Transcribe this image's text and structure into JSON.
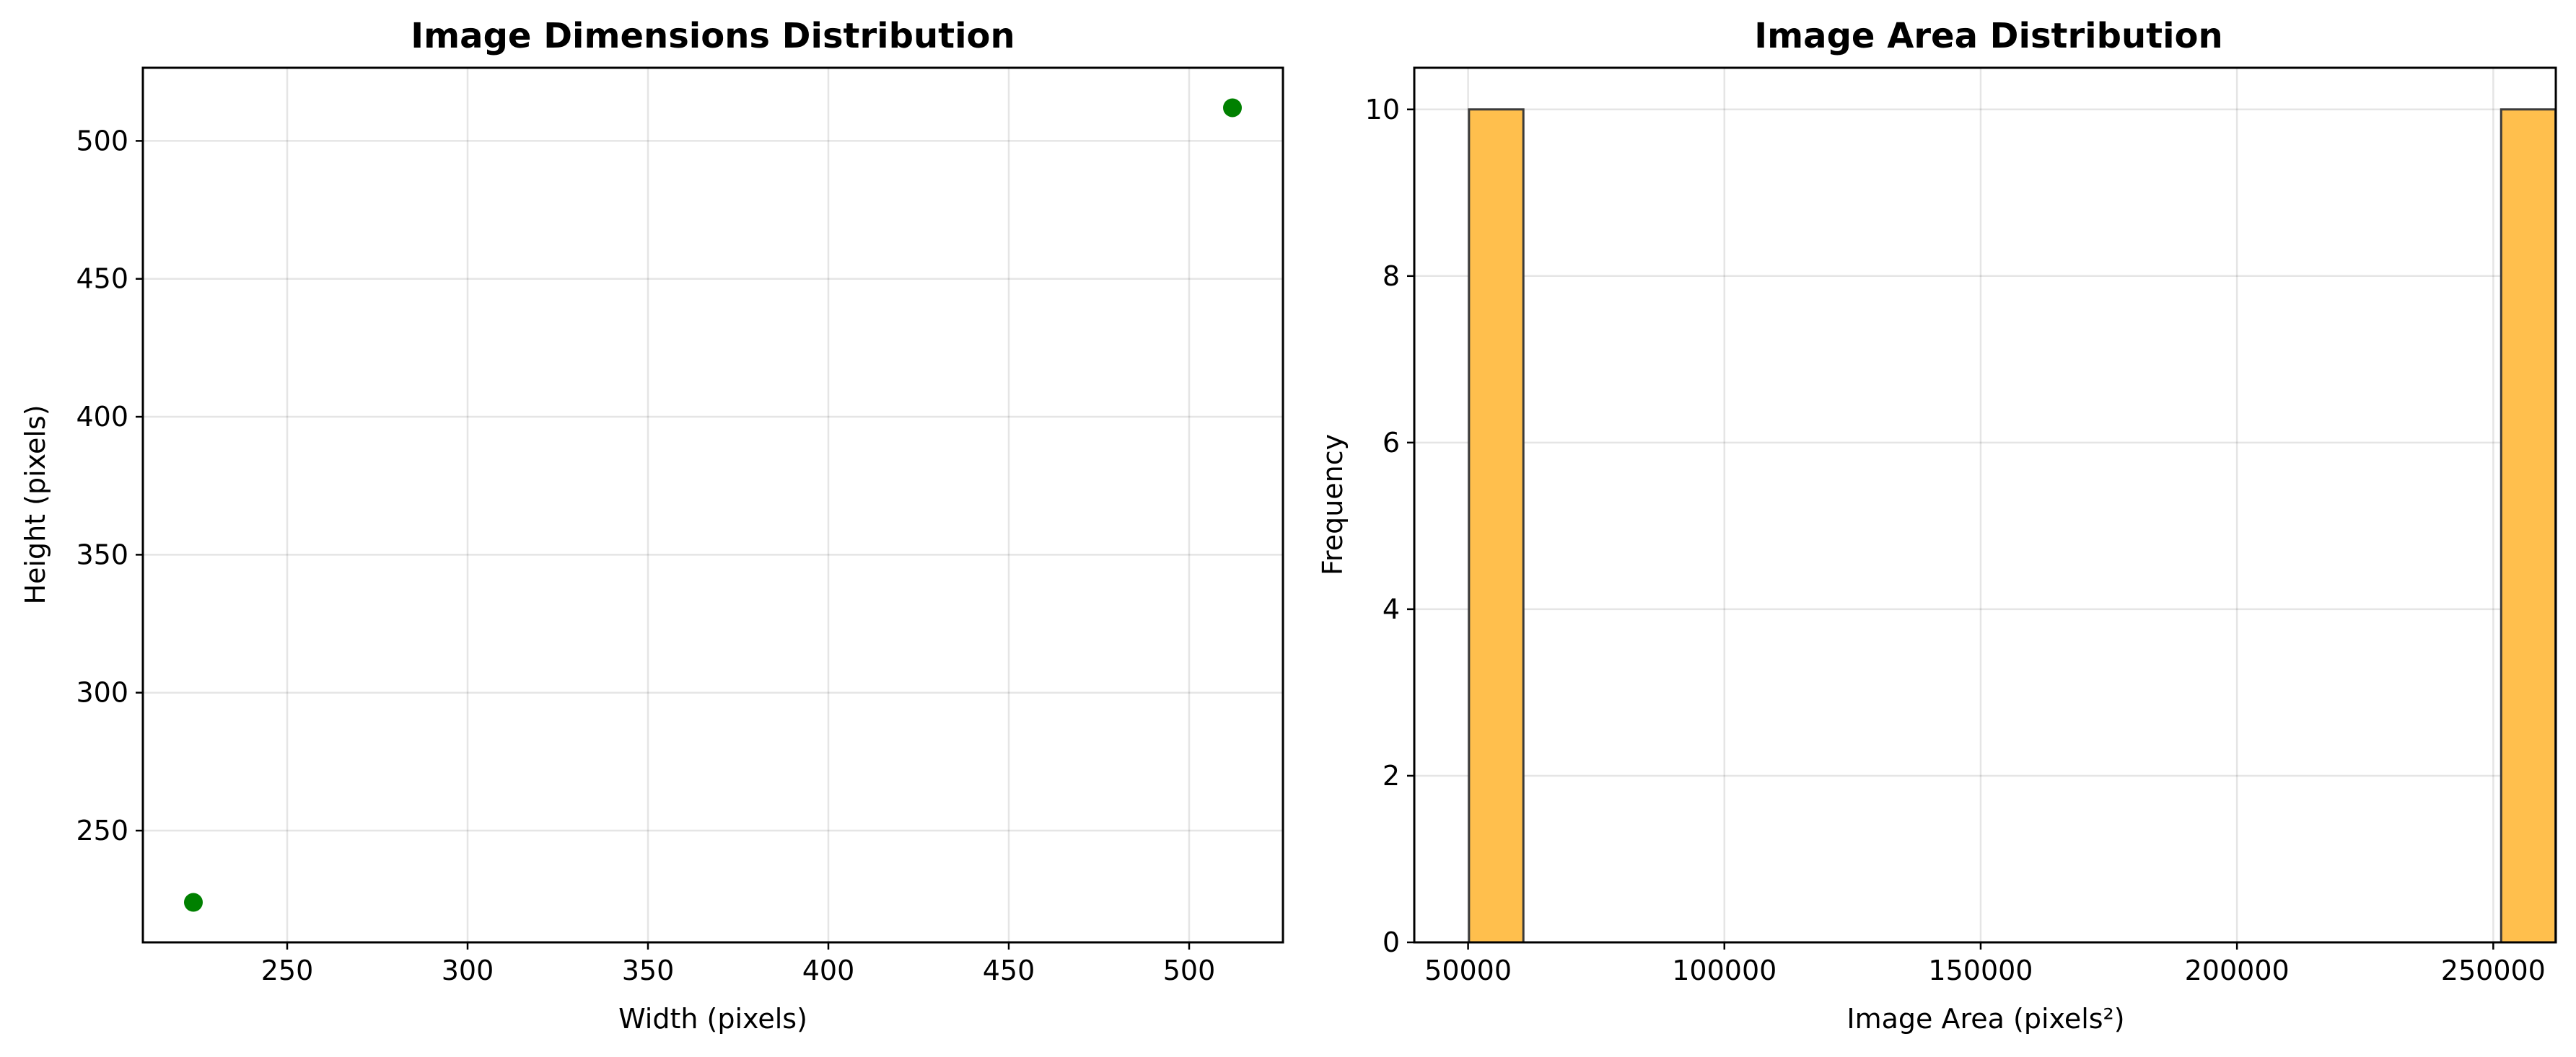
{
  "colors": {
    "scatter_point": "#008000",
    "bar_fill": "#ffbf4d",
    "bar_edge": "#3b3b3b"
  },
  "chart_data": [
    {
      "type": "scatter",
      "title": "Image Dimensions Distribution",
      "xlabel": "Width (pixels)",
      "ylabel": "Height (pixels)",
      "xlim": [
        210,
        526
      ],
      "ylim": [
        209.5,
        526.5
      ],
      "xticks": [
        250,
        300,
        350,
        400,
        450,
        500
      ],
      "yticks": [
        250,
        300,
        350,
        400,
        450,
        500
      ],
      "grid": true,
      "points": [
        {
          "x": 224,
          "y": 224
        },
        {
          "x": 512,
          "y": 512
        }
      ]
    },
    {
      "type": "bar",
      "title": "Image Area Distribution",
      "xlabel": "Image Area (pixels²)",
      "ylabel": "Frequency",
      "xlim": [
        39500,
        262200
      ],
      "ylim": [
        0,
        10.5
      ],
      "xticks": [
        50000,
        100000,
        150000,
        200000,
        250000
      ],
      "yticks": [
        0,
        2,
        4,
        6,
        8,
        10
      ],
      "grid": true,
      "bins": [
        {
          "start": 50176,
          "end": 60784,
          "count": 10
        },
        {
          "start": 251536,
          "end": 262144,
          "count": 10
        }
      ]
    }
  ]
}
